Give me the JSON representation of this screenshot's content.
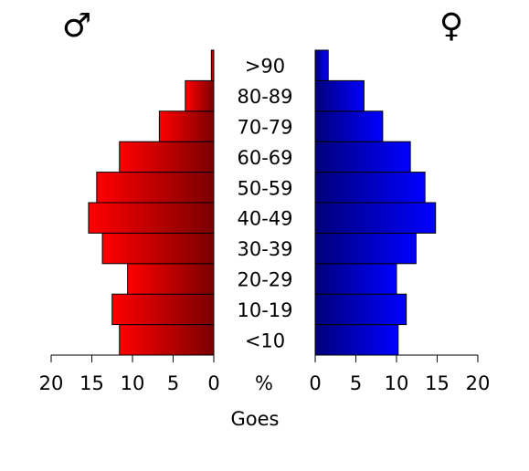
{
  "chart_data": {
    "type": "pyramid",
    "categories": [
      "<10",
      "10-19",
      "20-29",
      "30-39",
      "40-49",
      "50-59",
      "60-69",
      "70-79",
      "80-89",
      ">90"
    ],
    "series": [
      {
        "name": "♂",
        "side": "left",
        "color": [
          "#ff0000",
          "#7a0000"
        ],
        "values": [
          11.6,
          12.5,
          10.6,
          13.7,
          15.4,
          14.4,
          11.6,
          6.7,
          3.5,
          0.3
        ]
      },
      {
        "name": "♀",
        "side": "right",
        "color": [
          "#00007a",
          "#0000ff"
        ],
        "values": [
          10.2,
          11.2,
          10.0,
          12.4,
          14.8,
          13.5,
          11.7,
          8.3,
          6.0,
          1.6
        ]
      }
    ],
    "xlim": [
      0,
      20
    ],
    "xticks": [
      0,
      5,
      10,
      15,
      20
    ],
    "unit_label": "%",
    "xlabel": "Goes"
  }
}
